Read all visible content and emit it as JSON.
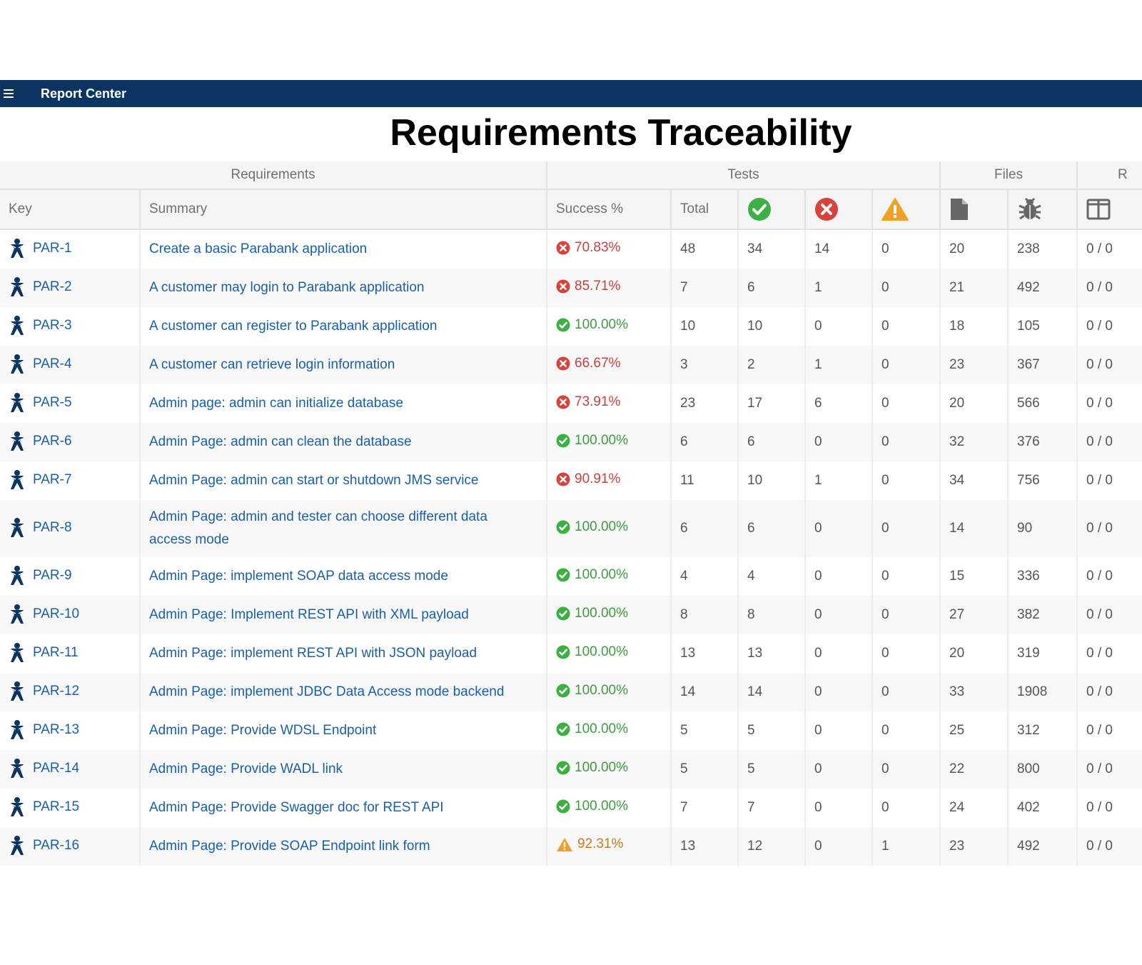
{
  "app": {
    "title": "Report Center"
  },
  "page": {
    "title": "Requirements Traceability"
  },
  "table": {
    "groups": [
      "Requirements",
      "Tests",
      "Files",
      "R"
    ],
    "columns": {
      "key": "Key",
      "summary": "Summary",
      "success": "Success %",
      "total": "Total",
      "passed_icon": "check-circle-icon",
      "failed_icon": "x-circle-icon",
      "incomplete_icon": "warning-triangle-icon",
      "files_icon": "file-icon",
      "bugs_icon": "bug-icon",
      "reviews_icon": "split-panel-icon"
    },
    "rows": [
      {
        "key": "PAR-1",
        "summary": "Create a basic Parabank application",
        "success": "70.83%",
        "status": "fail",
        "total": "48",
        "passed": "34",
        "failed": "14",
        "incomplete": "0",
        "files": "20",
        "bugs": "238",
        "reviews": "0 / 0"
      },
      {
        "key": "PAR-2",
        "summary": "A customer may login to Parabank application",
        "success": "85.71%",
        "status": "fail",
        "total": "7",
        "passed": "6",
        "failed": "1",
        "incomplete": "0",
        "files": "21",
        "bugs": "492",
        "reviews": "0 / 0"
      },
      {
        "key": "PAR-3",
        "summary": "A customer can register to Parabank application",
        "success": "100.00%",
        "status": "pass",
        "total": "10",
        "passed": "10",
        "failed": "0",
        "incomplete": "0",
        "files": "18",
        "bugs": "105",
        "reviews": "0 / 0"
      },
      {
        "key": "PAR-4",
        "summary": "A customer can retrieve login information",
        "success": "66.67%",
        "status": "fail",
        "total": "3",
        "passed": "2",
        "failed": "1",
        "incomplete": "0",
        "files": "23",
        "bugs": "367",
        "reviews": "0 / 0"
      },
      {
        "key": "PAR-5",
        "summary": "Admin page: admin can initialize database",
        "success": "73.91%",
        "status": "fail",
        "total": "23",
        "passed": "17",
        "failed": "6",
        "incomplete": "0",
        "files": "20",
        "bugs": "566",
        "reviews": "0 / 0"
      },
      {
        "key": "PAR-6",
        "summary": "Admin Page: admin can clean the database",
        "success": "100.00%",
        "status": "pass",
        "total": "6",
        "passed": "6",
        "failed": "0",
        "incomplete": "0",
        "files": "32",
        "bugs": "376",
        "reviews": "0 / 0"
      },
      {
        "key": "PAR-7",
        "summary": "Admin Page: admin can start or shutdown JMS service",
        "success": "90.91%",
        "status": "fail",
        "total": "11",
        "passed": "10",
        "failed": "1",
        "incomplete": "0",
        "files": "34",
        "bugs": "756",
        "reviews": "0 / 0"
      },
      {
        "key": "PAR-8",
        "summary": "Admin Page: admin and tester can choose different data access mode",
        "success": "100.00%",
        "status": "pass",
        "total": "6",
        "passed": "6",
        "failed": "0",
        "incomplete": "0",
        "files": "14",
        "bugs": "90",
        "reviews": "0 / 0"
      },
      {
        "key": "PAR-9",
        "summary": "Admin Page: implement SOAP data access mode",
        "success": "100.00%",
        "status": "pass",
        "total": "4",
        "passed": "4",
        "failed": "0",
        "incomplete": "0",
        "files": "15",
        "bugs": "336",
        "reviews": "0 / 0"
      },
      {
        "key": "PAR-10",
        "summary": "Admin Page: Implement REST API with XML payload",
        "success": "100.00%",
        "status": "pass",
        "total": "8",
        "passed": "8",
        "failed": "0",
        "incomplete": "0",
        "files": "27",
        "bugs": "382",
        "reviews": "0 / 0"
      },
      {
        "key": "PAR-11",
        "summary": "Admin Page: implement REST API with JSON payload",
        "success": "100.00%",
        "status": "pass",
        "total": "13",
        "passed": "13",
        "failed": "0",
        "incomplete": "0",
        "files": "20",
        "bugs": "319",
        "reviews": "0 / 0"
      },
      {
        "key": "PAR-12",
        "summary": "Admin Page: implement JDBC Data Access mode backend",
        "success": "100.00%",
        "status": "pass",
        "total": "14",
        "passed": "14",
        "failed": "0",
        "incomplete": "0",
        "files": "33",
        "bugs": "1908",
        "reviews": "0 / 0"
      },
      {
        "key": "PAR-13",
        "summary": "Admin Page: Provide WDSL Endpoint",
        "success": "100.00%",
        "status": "pass",
        "total": "5",
        "passed": "5",
        "failed": "0",
        "incomplete": "0",
        "files": "25",
        "bugs": "312",
        "reviews": "0 / 0"
      },
      {
        "key": "PAR-14",
        "summary": "Admin Page: Provide WADL link",
        "success": "100.00%",
        "status": "pass",
        "total": "5",
        "passed": "5",
        "failed": "0",
        "incomplete": "0",
        "files": "22",
        "bugs": "800",
        "reviews": "0 / 0"
      },
      {
        "key": "PAR-15",
        "summary": "Admin Page: Provide Swagger doc for REST API",
        "success": "100.00%",
        "status": "pass",
        "total": "7",
        "passed": "7",
        "failed": "0",
        "incomplete": "0",
        "files": "24",
        "bugs": "402",
        "reviews": "0 / 0"
      },
      {
        "key": "PAR-16",
        "summary": "Admin Page: Provide SOAP Endpoint link form",
        "success": "92.31%",
        "status": "warn",
        "total": "13",
        "passed": "12",
        "failed": "0",
        "incomplete": "1",
        "files": "23",
        "bugs": "492",
        "reviews": "0 / 0"
      }
    ]
  },
  "colors": {
    "topbar": "#0b3560",
    "link": "#1a5fa8",
    "pass": "#3cb043",
    "fail": "#d9413b",
    "warn": "#f0a028"
  }
}
